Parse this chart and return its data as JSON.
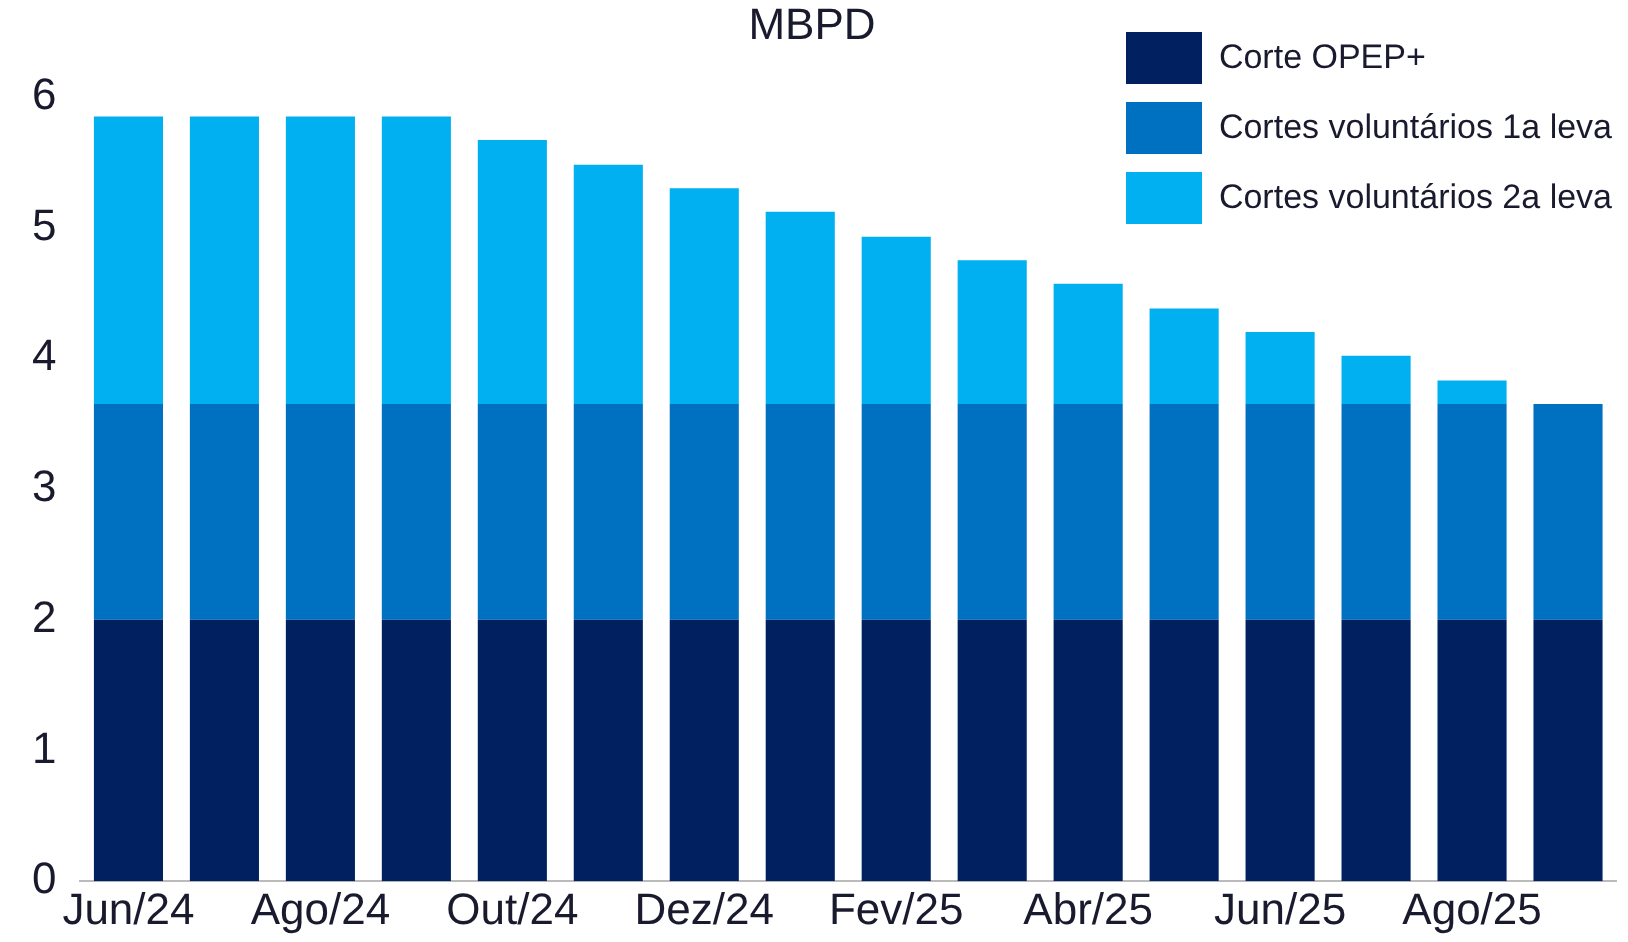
{
  "chart_data": {
    "type": "bar",
    "title": "MBPD",
    "stacked": true,
    "categories": [
      "Jun/24",
      null,
      "Ago/24",
      null,
      "Out/24",
      null,
      "Dez/24",
      null,
      "Fev/25",
      null,
      "Abr/25",
      null,
      "Jun/25",
      null,
      "Ago/25",
      null
    ],
    "series": [
      {
        "name": "Corte OPEP+",
        "color": "#002060",
        "values": [
          2,
          2,
          2,
          2,
          2,
          2,
          2,
          2,
          2,
          2,
          2,
          2,
          2,
          2,
          2,
          2
        ]
      },
      {
        "name": "Cortes voluntários 1a leva",
        "color": "#0070c0",
        "values": [
          1.65,
          1.65,
          1.65,
          1.65,
          1.65,
          1.65,
          1.65,
          1.65,
          1.65,
          1.65,
          1.65,
          1.65,
          1.65,
          1.65,
          1.65,
          1.65
        ]
      },
      {
        "name": "Cortes voluntários 2a leva",
        "color": "#00b0f0",
        "values": [
          2.2,
          2.2,
          2.2,
          2.2,
          2.02,
          1.83,
          1.65,
          1.47,
          1.28,
          1.1,
          0.92,
          0.73,
          0.55,
          0.37,
          0.18,
          0
        ]
      }
    ],
    "ylim": [
      0,
      6
    ],
    "yticks": [
      0,
      1,
      2,
      3,
      4,
      5,
      6
    ],
    "grid": false,
    "legend": "top right"
  }
}
